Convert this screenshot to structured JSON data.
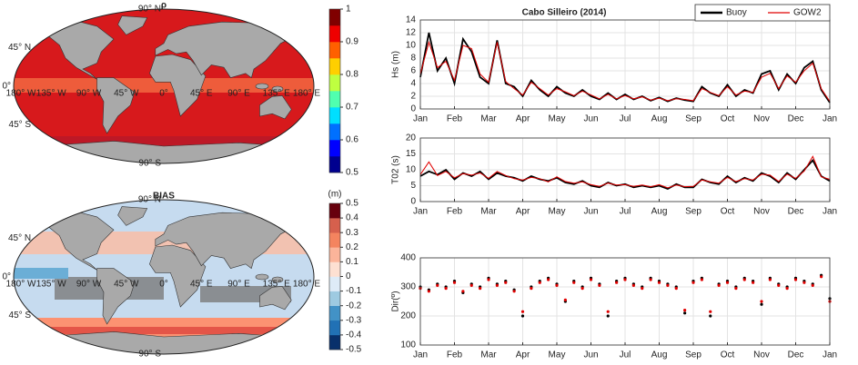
{
  "chart_data": [
    {
      "type": "map",
      "title": "ρ",
      "lat_labels": [
        "90° N",
        "45° N",
        "0°",
        "45° S",
        "90° S"
      ],
      "lon_labels": [
        "180° W",
        "135° W",
        "90° W",
        "45° W",
        "0°",
        "45° E",
        "90° E",
        "135° E",
        "180° E"
      ],
      "clim": [
        0.5,
        1
      ],
      "cticks": [
        0.5,
        0.6,
        0.7,
        0.8,
        0.9,
        1
      ],
      "colors": [
        "#00008f",
        "#0000ff",
        "#0070ff",
        "#00dfff",
        "#50ffaf",
        "#bfff40",
        "#ffcf00",
        "#ff6000",
        "#ef0000",
        "#800000"
      ]
    },
    {
      "type": "map",
      "title": "BIAS",
      "colorbar_label": "(m)",
      "lat_labels": [
        "90° N",
        "45° N",
        "0°",
        "45° S",
        "90° S"
      ],
      "lon_labels": [
        "180° W",
        "135° W",
        "90° W",
        "45° W",
        "0°",
        "45° E",
        "90° E",
        "135° E",
        "180° E"
      ],
      "clim": [
        -0.5,
        0.5
      ],
      "cticks": [
        -0.5,
        -0.4,
        -0.3,
        -0.2,
        -0.1,
        0,
        0.1,
        0.2,
        0.3,
        0.4,
        0.5
      ],
      "colors": [
        "#08306b",
        "#2171b5",
        "#4292c6",
        "#9ecae1",
        "#deebf7",
        "#fde0d2",
        "#fbb49a",
        "#f4845f",
        "#d6604d",
        "#67000d"
      ]
    },
    {
      "type": "line",
      "title": "Cabo Silleiro (2014)",
      "ylabel": "Hs (m)",
      "legend": "top-right",
      "grid": true,
      "x": [
        0,
        0.25,
        0.5,
        0.75,
        1,
        1.25,
        1.5,
        1.75,
        2,
        2.25,
        2.5,
        2.75,
        3,
        3.25,
        3.5,
        3.75,
        4,
        4.25,
        4.5,
        4.75,
        5,
        5.25,
        5.5,
        5.75,
        6,
        6.25,
        6.5,
        6.75,
        7,
        7.25,
        7.5,
        7.75,
        8,
        8.25,
        8.5,
        8.75,
        9,
        9.25,
        9.5,
        9.75,
        10,
        10.25,
        10.5,
        10.75,
        11,
        11.25,
        11.5,
        11.75,
        12
      ],
      "xlim": [
        0,
        12
      ],
      "xticks": [
        {
          "value": 0,
          "label": "Jan"
        },
        {
          "value": 1,
          "label": "Feb"
        },
        {
          "value": 2,
          "label": "Mar"
        },
        {
          "value": 3,
          "label": "Apr"
        },
        {
          "value": 4,
          "label": "May"
        },
        {
          "value": 5,
          "label": "Jun"
        },
        {
          "value": 6,
          "label": "Jul"
        },
        {
          "value": 7,
          "label": "Aug"
        },
        {
          "value": 8,
          "label": "Sep"
        },
        {
          "value": 9,
          "label": "Oct"
        },
        {
          "value": 10,
          "label": "Nov"
        },
        {
          "value": 11,
          "label": "Dec"
        },
        {
          "value": 12,
          "label": "Jan"
        }
      ],
      "ylim": [
        0,
        14
      ],
      "yticks": [
        0,
        2,
        4,
        6,
        8,
        10,
        12,
        14
      ],
      "series": [
        {
          "name": "Buoy",
          "color": "#000000",
          "values": [
            5,
            12,
            6,
            8,
            4,
            11,
            9,
            5,
            4,
            10.8,
            4,
            3.5,
            2,
            4.5,
            3,
            2,
            3.5,
            2.5,
            2,
            3,
            2,
            1.5,
            2.5,
            1.5,
            2.3,
            1.5,
            2,
            1.3,
            1.8,
            1.2,
            1.7,
            1.4,
            1.2,
            3.5,
            2.5,
            2,
            3.8,
            2,
            3,
            2.5,
            5.5,
            6,
            3,
            5.5,
            4,
            6.5,
            7.5,
            3,
            1
          ]
        },
        {
          "name": "GOW2",
          "color": "#e00000",
          "values": [
            5.5,
            10.5,
            6.5,
            7.5,
            4.5,
            10,
            9.5,
            5.5,
            4.2,
            10.5,
            4.3,
            3.2,
            2.2,
            4.2,
            3.2,
            2.2,
            3.2,
            2.7,
            2.1,
            2.8,
            2.2,
            1.6,
            2.3,
            1.6,
            2.1,
            1.6,
            1.9,
            1.4,
            1.7,
            1.3,
            1.6,
            1.5,
            1.3,
            3.2,
            2.6,
            2.1,
            3.5,
            2.2,
            2.8,
            2.6,
            5,
            5.6,
            3.2,
            5.2,
            4.2,
            6,
            7.2,
            3.2,
            1.2
          ]
        }
      ]
    },
    {
      "type": "line",
      "ylabel": "T02 (s)",
      "grid": true,
      "x": [
        0,
        0.25,
        0.5,
        0.75,
        1,
        1.25,
        1.5,
        1.75,
        2,
        2.25,
        2.5,
        2.75,
        3,
        3.25,
        3.5,
        3.75,
        4,
        4.25,
        4.5,
        4.75,
        5,
        5.25,
        5.5,
        5.75,
        6,
        6.25,
        6.5,
        6.75,
        7,
        7.25,
        7.5,
        7.75,
        8,
        8.25,
        8.5,
        8.75,
        9,
        9.25,
        9.5,
        9.75,
        10,
        10.25,
        10.5,
        10.75,
        11,
        11.25,
        11.5,
        11.75,
        12
      ],
      "xlim": [
        0,
        12
      ],
      "xticks": [
        {
          "value": 0,
          "label": "Jan"
        },
        {
          "value": 1,
          "label": "Feb"
        },
        {
          "value": 2,
          "label": "Mar"
        },
        {
          "value": 3,
          "label": "Apr"
        },
        {
          "value": 4,
          "label": "May"
        },
        {
          "value": 5,
          "label": "Jun"
        },
        {
          "value": 6,
          "label": "Jul"
        },
        {
          "value": 7,
          "label": "Aug"
        },
        {
          "value": 8,
          "label": "Sep"
        },
        {
          "value": 9,
          "label": "Oct"
        },
        {
          "value": 10,
          "label": "Nov"
        },
        {
          "value": 11,
          "label": "Dec"
        },
        {
          "value": 12,
          "label": "Jan"
        }
      ],
      "ylim": [
        0,
        20
      ],
      "yticks": [
        0,
        5,
        10,
        15,
        20
      ],
      "series": [
        {
          "color": "#000000",
          "values": [
            8,
            9.5,
            8.5,
            10,
            7,
            9,
            8,
            9.5,
            7,
            9,
            8,
            7.5,
            6.5,
            8,
            7,
            6.5,
            7.5,
            6,
            5.5,
            6.5,
            5,
            4.5,
            6,
            5,
            5.5,
            4.5,
            5,
            4.5,
            5,
            4,
            5.5,
            4.5,
            4.5,
            7,
            6,
            5.5,
            8,
            6,
            7.5,
            6.5,
            9,
            8,
            6,
            9,
            7,
            10,
            13,
            8,
            6.5
          ]
        },
        {
          "color": "#e00000",
          "values": [
            8.5,
            12.5,
            8.2,
            9.5,
            7.5,
            8.8,
            8.3,
            9,
            7.3,
            9.5,
            8.2,
            7.2,
            6.8,
            7.6,
            7.2,
            6.2,
            7.8,
            6.3,
            5.8,
            6.2,
            5.3,
            4.8,
            5.8,
            5.2,
            5.3,
            4.8,
            5.2,
            4.7,
            5.3,
            4.3,
            5.2,
            4.7,
            4.8,
            6.8,
            6.2,
            5.8,
            7.6,
            6.3,
            7.2,
            6.8,
            8.6,
            8.3,
            6.3,
            8.6,
            7.3,
            9.6,
            14.2,
            7.8,
            7
          ]
        }
      ]
    },
    {
      "type": "scatter",
      "ylabel": "Dir(º)",
      "grid": true,
      "x": [
        0,
        0.25,
        0.5,
        0.75,
        1,
        1.25,
        1.5,
        1.75,
        2,
        2.25,
        2.5,
        2.75,
        3,
        3.25,
        3.5,
        3.75,
        4,
        4.25,
        4.5,
        4.75,
        5,
        5.25,
        5.5,
        5.75,
        6,
        6.25,
        6.5,
        6.75,
        7,
        7.25,
        7.5,
        7.75,
        8,
        8.25,
        8.5,
        8.75,
        9,
        9.25,
        9.5,
        9.75,
        10,
        10.25,
        10.5,
        10.75,
        11,
        11.25,
        11.5,
        11.75,
        12
      ],
      "xlim": [
        0,
        12
      ],
      "xticks": [
        {
          "value": 0,
          "label": "Jan"
        },
        {
          "value": 1,
          "label": "Feb"
        },
        {
          "value": 2,
          "label": "Mar"
        },
        {
          "value": 3,
          "label": "Apr"
        },
        {
          "value": 4,
          "label": "May"
        },
        {
          "value": 5,
          "label": "Jun"
        },
        {
          "value": 6,
          "label": "Jul"
        },
        {
          "value": 7,
          "label": "Aug"
        },
        {
          "value": 8,
          "label": "Sep"
        },
        {
          "value": 9,
          "label": "Oct"
        },
        {
          "value": 10,
          "label": "Nov"
        },
        {
          "value": 11,
          "label": "Dec"
        },
        {
          "value": 12,
          "label": "Jan"
        }
      ],
      "ylim": [
        100,
        400
      ],
      "yticks": [
        100,
        200,
        300,
        400
      ],
      "series": [
        {
          "color": "#000000",
          "values": [
            300,
            290,
            310,
            300,
            320,
            280,
            310,
            300,
            330,
            310,
            320,
            290,
            200,
            300,
            320,
            330,
            310,
            250,
            320,
            300,
            330,
            310,
            200,
            320,
            330,
            310,
            300,
            330,
            320,
            310,
            300,
            210,
            320,
            330,
            200,
            310,
            320,
            300,
            330,
            320,
            240,
            330,
            310,
            300,
            330,
            320,
            310,
            340,
            260
          ]
        },
        {
          "color": "#e00000",
          "values": [
            295,
            285,
            305,
            295,
            315,
            285,
            305,
            295,
            325,
            305,
            315,
            285,
            215,
            295,
            315,
            325,
            305,
            255,
            315,
            295,
            325,
            305,
            215,
            315,
            325,
            305,
            295,
            325,
            315,
            305,
            295,
            220,
            315,
            325,
            215,
            305,
            315,
            295,
            325,
            315,
            250,
            325,
            305,
            295,
            325,
            315,
            305,
            335,
            250
          ]
        }
      ]
    }
  ]
}
